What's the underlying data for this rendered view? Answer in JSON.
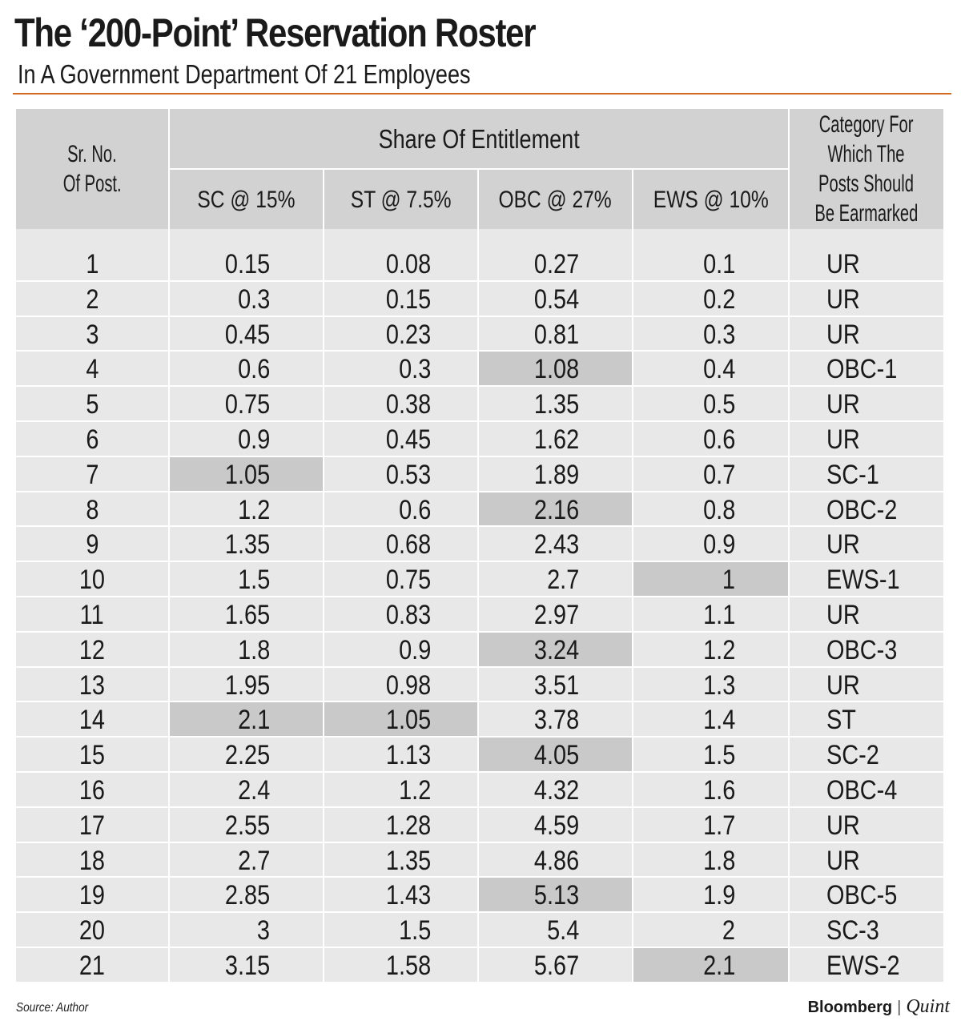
{
  "title": "The ‘200-Point’ Reservation Roster",
  "subtitle": "In A Government Department Of 21 Employees",
  "header": {
    "sr_no": [
      "Sr. No.",
      "Of Post."
    ],
    "share_of_entitlement": "Share Of Entitlement",
    "columns": [
      "SC @ 15%",
      "ST @ 7.5%",
      "OBC @ 27%",
      "EWS @ 10%"
    ],
    "category": [
      "Category For",
      "Which The",
      "Posts Should",
      "Be Earmarked"
    ]
  },
  "rows": [
    {
      "sr": "1",
      "sc": "0.15",
      "st": "0.08",
      "obc": "0.27",
      "ews": "0.1",
      "cat": "UR",
      "hl": []
    },
    {
      "sr": "2",
      "sc": "0.3",
      "st": "0.15",
      "obc": "0.54",
      "ews": "0.2",
      "cat": "UR",
      "hl": []
    },
    {
      "sr": "3",
      "sc": "0.45",
      "st": "0.23",
      "obc": "0.81",
      "ews": "0.3",
      "cat": "UR",
      "hl": []
    },
    {
      "sr": "4",
      "sc": "0.6",
      "st": "0.3",
      "obc": "1.08",
      "ews": "0.4",
      "cat": "OBC-1",
      "hl": [
        "obc"
      ]
    },
    {
      "sr": "5",
      "sc": "0.75",
      "st": "0.38",
      "obc": "1.35",
      "ews": "0.5",
      "cat": "UR",
      "hl": []
    },
    {
      "sr": "6",
      "sc": "0.9",
      "st": "0.45",
      "obc": "1.62",
      "ews": "0.6",
      "cat": "UR",
      "hl": []
    },
    {
      "sr": "7",
      "sc": "1.05",
      "st": "0.53",
      "obc": "1.89",
      "ews": "0.7",
      "cat": "SC-1",
      "hl": [
        "sc"
      ]
    },
    {
      "sr": "8",
      "sc": "1.2",
      "st": "0.6",
      "obc": "2.16",
      "ews": "0.8",
      "cat": "OBC-2",
      "hl": [
        "obc"
      ]
    },
    {
      "sr": "9",
      "sc": "1.35",
      "st": "0.68",
      "obc": "2.43",
      "ews": "0.9",
      "cat": "UR",
      "hl": []
    },
    {
      "sr": "10",
      "sc": "1.5",
      "st": "0.75",
      "obc": "2.7",
      "ews": "1",
      "cat": "EWS-1",
      "hl": [
        "ews"
      ]
    },
    {
      "sr": "11",
      "sc": "1.65",
      "st": "0.83",
      "obc": "2.97",
      "ews": "1.1",
      "cat": "UR",
      "hl": []
    },
    {
      "sr": "12",
      "sc": "1.8",
      "st": "0.9",
      "obc": "3.24",
      "ews": "1.2",
      "cat": "OBC-3",
      "hl": [
        "obc"
      ]
    },
    {
      "sr": "13",
      "sc": "1.95",
      "st": "0.98",
      "obc": "3.51",
      "ews": "1.3",
      "cat": "UR",
      "hl": []
    },
    {
      "sr": "14",
      "sc": "2.1",
      "st": "1.05",
      "obc": "3.78",
      "ews": "1.4",
      "cat": "ST",
      "hl": [
        "sc",
        "st"
      ]
    },
    {
      "sr": "15",
      "sc": "2.25",
      "st": "1.13",
      "obc": "4.05",
      "ews": "1.5",
      "cat": "SC-2",
      "hl": [
        "obc"
      ]
    },
    {
      "sr": "16",
      "sc": "2.4",
      "st": "1.2",
      "obc": "4.32",
      "ews": "1.6",
      "cat": "OBC-4",
      "hl": []
    },
    {
      "sr": "17",
      "sc": "2.55",
      "st": "1.28",
      "obc": "4.59",
      "ews": "1.7",
      "cat": "UR",
      "hl": []
    },
    {
      "sr": "18",
      "sc": "2.7",
      "st": "1.35",
      "obc": "4.86",
      "ews": "1.8",
      "cat": "UR",
      "hl": []
    },
    {
      "sr": "19",
      "sc": "2.85",
      "st": "1.43",
      "obc": "5.13",
      "ews": "1.9",
      "cat": "OBC-5",
      "hl": [
        "obc"
      ]
    },
    {
      "sr": "20",
      "sc": "3",
      "st": "1.5",
      "obc": "5.4",
      "ews": "2",
      "cat": "SC-3",
      "hl": []
    },
    {
      "sr": "21",
      "sc": "3.15",
      "st": "1.58",
      "obc": "5.67",
      "ews": "2.1",
      "cat": "EWS-2",
      "hl": [
        "ews"
      ]
    }
  ],
  "source": "Source: Author",
  "brand": {
    "name": "Bloomberg",
    "separator": "|",
    "suffix": "Quint"
  },
  "colors": {
    "rule": "#d2691e",
    "header_bg": "#d2d2d2",
    "body_bg": "#e8e8e8",
    "highlight": "#c9c9c9",
    "grid": "#ffffff"
  }
}
